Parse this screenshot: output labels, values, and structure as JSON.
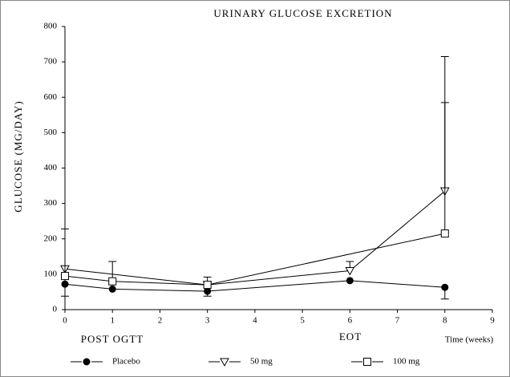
{
  "chart_data": {
    "type": "line",
    "title": "URINARY GLUCOSE EXCRETION",
    "y_label": "GLUCOSE (MG/DAY)",
    "annotations": [
      "POST OGTT",
      "EOT",
      "Time (weeks)"
    ],
    "xlim": [
      0,
      9
    ],
    "xticks": [
      0,
      1,
      2,
      3,
      4,
      5,
      6,
      7,
      8,
      9
    ],
    "ylim": [
      0,
      800
    ],
    "yticks": [
      0,
      100,
      200,
      300,
      400,
      500,
      600,
      700,
      800
    ],
    "color": "#000000",
    "series": [
      {
        "name": "Placebo",
        "marker": "circle-filled",
        "x": [
          0,
          1,
          3,
          6,
          8
        ],
        "values": [
          72,
          58,
          52,
          82,
          63
        ],
        "errors_up": [
          null,
          null,
          null,
          null,
          null
        ],
        "errors_down": [
          34,
          null,
          14,
          null,
          33
        ]
      },
      {
        "name": "50 mg",
        "marker": "triangle-down-open",
        "x": [
          0,
          3,
          6,
          8
        ],
        "values": [
          115,
          70,
          110,
          335
        ],
        "errors_up": [
          null,
          22,
          26,
          250
        ],
        "errors_down": [
          null,
          null,
          null,
          null
        ]
      },
      {
        "name": "100 mg",
        "marker": "square-open",
        "x": [
          0,
          1,
          3,
          8
        ],
        "values": [
          95,
          80,
          70,
          215
        ],
        "errors_up": [
          133,
          56,
          null,
          500
        ],
        "errors_down": [
          null,
          null,
          null,
          null
        ]
      }
    ]
  }
}
